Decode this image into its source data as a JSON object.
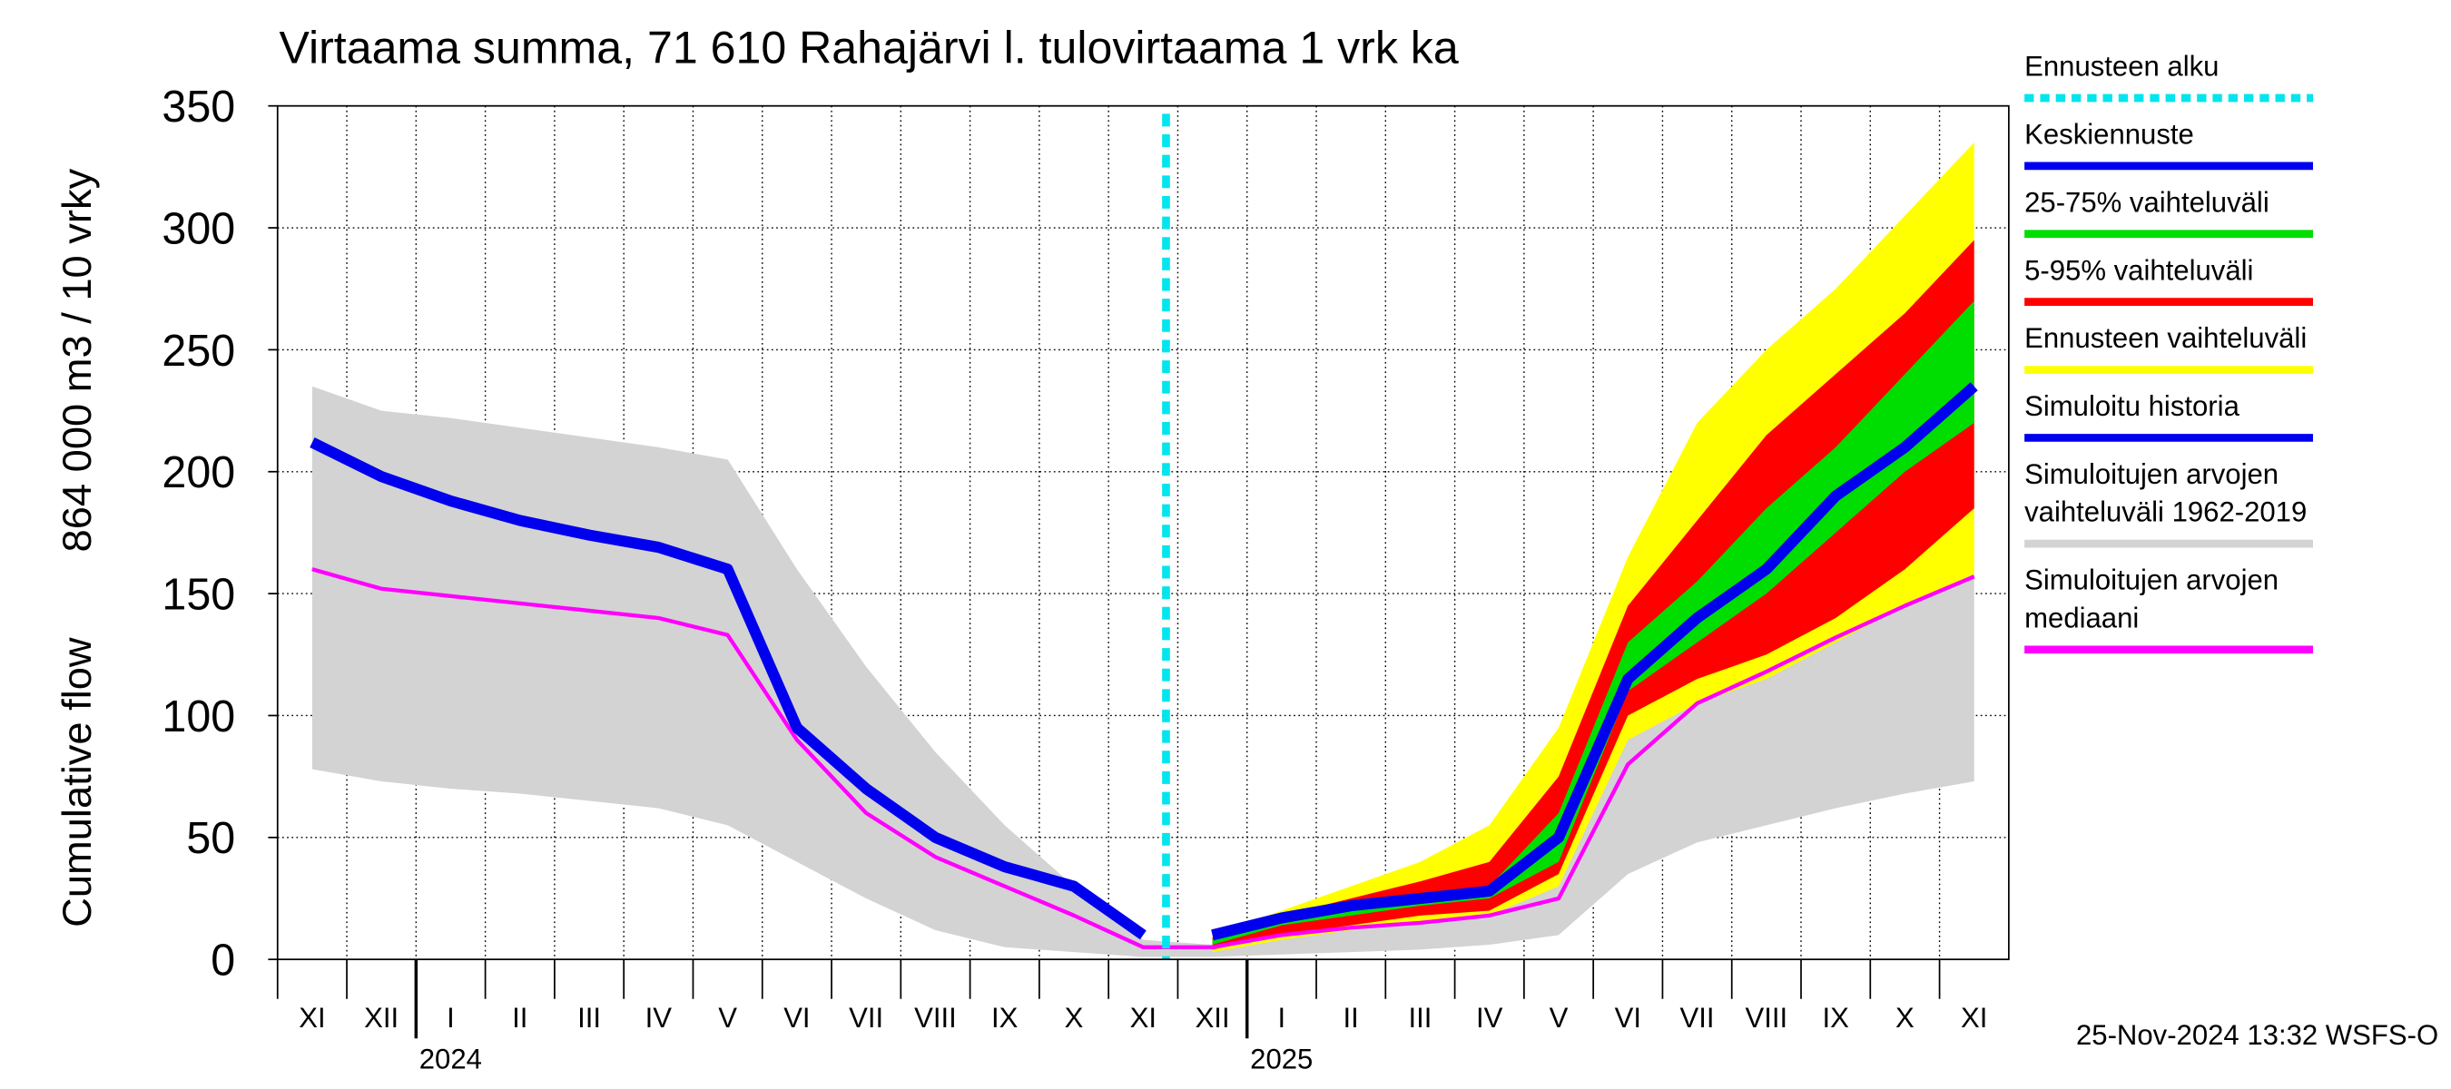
{
  "chart_data": {
    "type": "line",
    "title": "Virtaama summa, 71 610 Rahajärvi l. tulovirtaama 1 vrk ka",
    "ylabel": "Cumulative flow",
    "ylabel2": "864 000 m3 / 10 vrky",
    "footer": "25-Nov-2024 13:32 WSFS-O",
    "categories": [
      "XI",
      "XII",
      "I",
      "II",
      "III",
      "IV",
      "V",
      "VI",
      "VII",
      "VIII",
      "IX",
      "X",
      "XI",
      "XII",
      "I",
      "II",
      "III",
      "IV",
      "V",
      "VI",
      "VII",
      "VIII",
      "IX",
      "X",
      "XI"
    ],
    "years": [
      null,
      null,
      "2024",
      null,
      null,
      null,
      null,
      null,
      null,
      null,
      null,
      null,
      null,
      null,
      "2025",
      null,
      null,
      null,
      null,
      null,
      null,
      null,
      null,
      null,
      null
    ],
    "ylim": [
      0,
      350
    ],
    "yticks": [
      0,
      50,
      100,
      150,
      200,
      250,
      300,
      350
    ],
    "grid": true,
    "forecast_start": {
      "name": "Ennusteen alku",
      "color": "#00e5ee"
    },
    "series": [
      {
        "name": "Keskiennuste",
        "color": "#0000ee",
        "values": [
          null,
          null,
          null,
          null,
          null,
          null,
          null,
          null,
          null,
          null,
          null,
          null,
          null,
          10,
          17,
          22,
          25,
          28,
          50,
          115,
          140,
          160,
          190,
          210,
          235
        ]
      },
      {
        "name": "25-75% vaihteluväli",
        "color": "#00dd00",
        "low": [
          null,
          null,
          null,
          null,
          null,
          null,
          null,
          null,
          null,
          null,
          null,
          null,
          null,
          6,
          14,
          18,
          22,
          25,
          40,
          110,
          130,
          150,
          175,
          200,
          220
        ],
        "high": [
          null,
          null,
          null,
          null,
          null,
          null,
          null,
          null,
          null,
          null,
          null,
          null,
          null,
          8,
          17,
          21,
          26,
          30,
          60,
          130,
          155,
          185,
          210,
          240,
          270
        ]
      },
      {
        "name": "5-95% vaihteluväli",
        "color": "#ff0000",
        "low": [
          null,
          null,
          null,
          null,
          null,
          null,
          null,
          null,
          null,
          null,
          null,
          null,
          null,
          4,
          10,
          14,
          18,
          20,
          35,
          100,
          115,
          125,
          140,
          160,
          185
        ],
        "high": [
          null,
          null,
          null,
          null,
          null,
          null,
          null,
          null,
          null,
          null,
          null,
          null,
          null,
          9,
          18,
          25,
          32,
          40,
          75,
          145,
          180,
          215,
          240,
          265,
          295
        ]
      },
      {
        "name": "Ennusteen vaihteluväli",
        "color": "#ffff00",
        "low": [
          null,
          null,
          null,
          null,
          null,
          null,
          null,
          null,
          null,
          null,
          null,
          null,
          null,
          3,
          8,
          12,
          15,
          18,
          30,
          90,
          105,
          115,
          130,
          145,
          158
        ],
        "high": [
          null,
          null,
          null,
          null,
          null,
          null,
          null,
          null,
          null,
          null,
          null,
          null,
          null,
          10,
          20,
          30,
          40,
          55,
          95,
          165,
          220,
          250,
          275,
          305,
          335
        ]
      },
      {
        "name": "Simuloitu historia",
        "color": "#0000ee",
        "values": [
          212,
          198,
          188,
          180,
          174,
          169,
          160,
          95,
          70,
          50,
          38,
          30,
          10,
          null,
          null,
          null,
          null,
          null,
          null,
          null,
          null,
          null,
          null,
          null,
          null
        ]
      },
      {
        "name": "Simuloitujen arvojen\nvaihteluväli 1962-2019",
        "color": "#d3d3d3",
        "low": [
          78,
          73,
          70,
          68,
          65,
          62,
          55,
          40,
          25,
          12,
          5,
          3,
          1,
          1,
          2,
          3,
          4,
          6,
          10,
          35,
          48,
          55,
          62,
          68,
          73
        ],
        "high": [
          235,
          225,
          222,
          218,
          214,
          210,
          205,
          160,
          120,
          85,
          55,
          30,
          8,
          6,
          10,
          13,
          16,
          20,
          30,
          165,
          195,
          205,
          215,
          222,
          230
        ]
      },
      {
        "name": "Simuloitujen arvojen\nmediaani",
        "color": "#ff00ff",
        "values": [
          160,
          152,
          149,
          146,
          143,
          140,
          133,
          90,
          60,
          42,
          30,
          18,
          5,
          5,
          10,
          13,
          15,
          18,
          25,
          80,
          105,
          118,
          132,
          145,
          157
        ]
      }
    ]
  }
}
